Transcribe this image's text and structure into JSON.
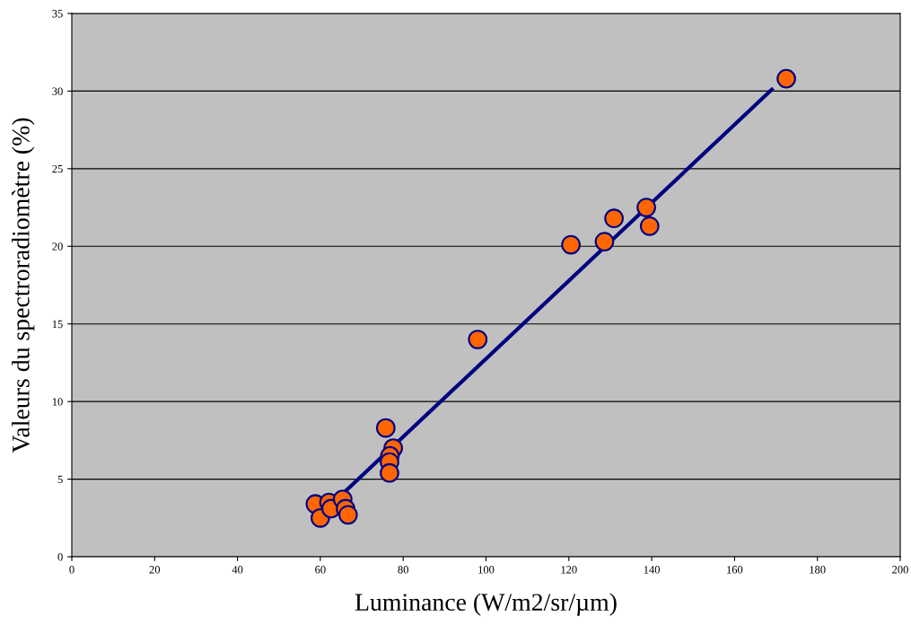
{
  "chart_data": {
    "type": "scatter",
    "xlabel": "Luminance (W/m2/sr/µm)",
    "ylabel": "Valeurs du spectroradiomètre (%)",
    "xlim": [
      0,
      200
    ],
    "xticks": [
      0,
      20,
      40,
      60,
      80,
      100,
      120,
      140,
      160,
      180,
      200
    ],
    "ylim": [
      0,
      35
    ],
    "yticks": [
      0,
      5,
      10,
      15,
      20,
      25,
      30,
      35
    ],
    "grid": "y",
    "series": [
      {
        "marker": "circle",
        "color": "#ff6600",
        "x": [
          58.8,
          60.0,
          62.1,
          62.6,
          65.4,
          66.1,
          66.7,
          75.8,
          77.6,
          76.8,
          76.7,
          76.7,
          98.0,
          120.5,
          128.6,
          130.9,
          138.7,
          139.5,
          172.5
        ],
        "values": [
          3.4,
          2.5,
          3.5,
          3.1,
          3.7,
          3.1,
          2.7,
          8.3,
          7.0,
          6.5,
          6.1,
          5.4,
          14.0,
          20.1,
          20.3,
          21.8,
          22.5,
          21.3,
          30.8
        ]
      },
      {
        "type": "line",
        "color": "#000080",
        "x": [
          58.8,
          169.0
        ],
        "values": [
          2.4,
          30.1
        ],
        "marker": "none",
        "line_style": "solid"
      }
    ]
  }
}
